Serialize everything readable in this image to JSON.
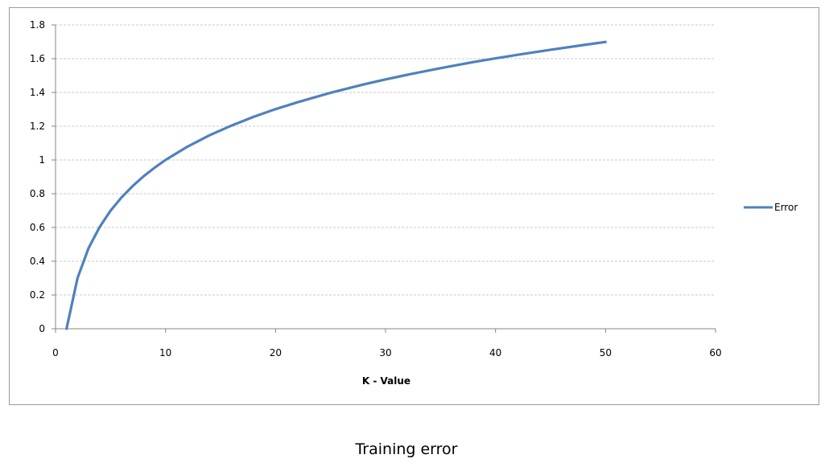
{
  "caption": "Training error",
  "chart_data": {
    "type": "line",
    "xlabel": "K - Value",
    "ylabel": "",
    "title": "",
    "xlim": [
      0,
      60
    ],
    "ylim": [
      0,
      1.8
    ],
    "xticks": [
      0,
      10,
      20,
      30,
      40,
      50,
      60
    ],
    "yticks": [
      0,
      0.2,
      0.4,
      0.6,
      0.8,
      1,
      1.2,
      1.4,
      1.6,
      1.8
    ],
    "xtick_labels": [
      "0",
      "10",
      "20",
      "30",
      "40",
      "50",
      "60"
    ],
    "ytick_labels": [
      "0",
      "0.2",
      "0.4",
      "0.6",
      "0.8",
      "1",
      "1.2",
      "1.4",
      "1.6",
      "1.8"
    ],
    "grid": "horizontal dashed",
    "legend_position": "right",
    "series": [
      {
        "name": "Error",
        "color": "#4f81bd",
        "x": [
          1,
          2,
          3,
          4,
          5,
          6,
          7,
          8,
          9,
          10,
          12,
          14,
          16,
          18,
          20,
          22,
          25,
          28,
          30,
          32,
          35,
          38,
          40,
          42,
          45,
          48,
          50
        ],
        "y": [
          0,
          0.3,
          0.477,
          0.602,
          0.699,
          0.778,
          0.845,
          0.903,
          0.954,
          1.0,
          1.079,
          1.146,
          1.204,
          1.255,
          1.301,
          1.342,
          1.398,
          1.447,
          1.477,
          1.505,
          1.544,
          1.58,
          1.602,
          1.623,
          1.653,
          1.681,
          1.699
        ]
      }
    ]
  }
}
